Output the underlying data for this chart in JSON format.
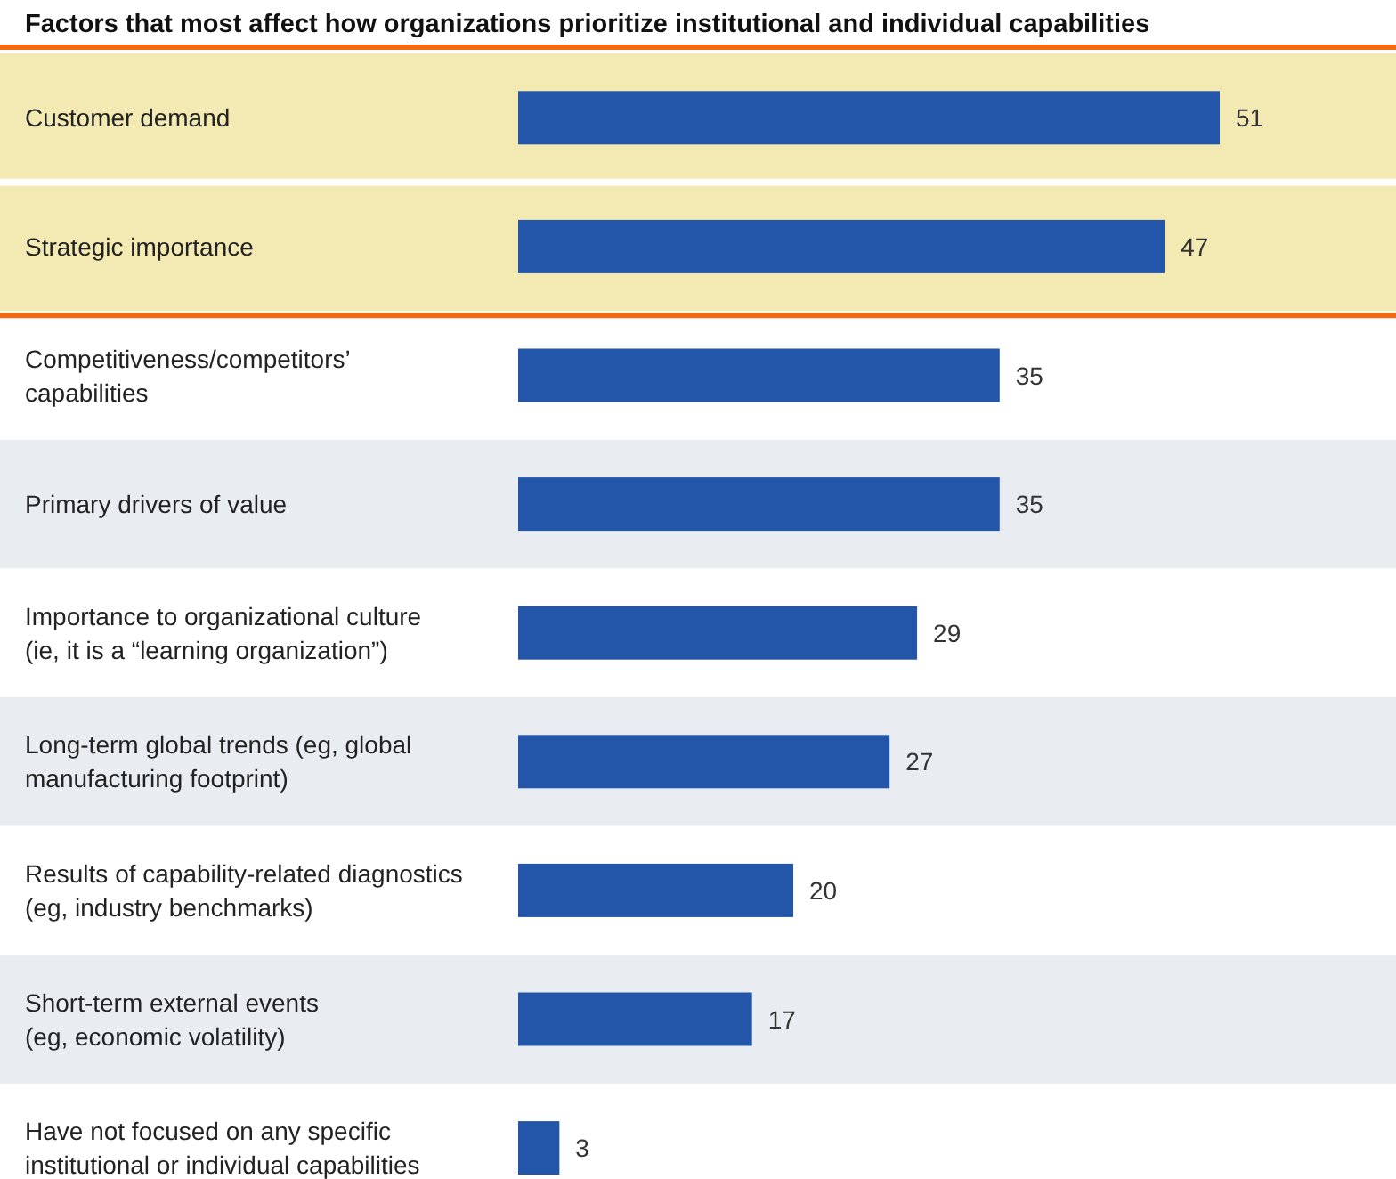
{
  "chart_data": {
    "type": "bar",
    "orientation": "horizontal",
    "title": "Factors that most affect how organizations prioritize institutional and individual capabilities",
    "categories": [
      "Customer demand",
      "Strategic importance",
      "Competitiveness/competitors’\ncapabilities",
      "Primary drivers of value",
      "Importance to organizational culture\n(ie, it is a “learning organization”)",
      "Long-term global trends (eg, global\nmanufacturing footprint)",
      "Results of capability-related diagnostics\n(eg, industry benchmarks)",
      "Short-term external events\n(eg, economic volatility)",
      "Have not focused on any specific\ninstitutional or individual capabilities"
    ],
    "values": [
      51,
      47,
      35,
      35,
      29,
      27,
      20,
      17,
      3
    ],
    "color": "#2356a8",
    "data_labels": true,
    "bands": [
      {
        "axis": "y",
        "from": "Customer demand",
        "to": "Strategic importance",
        "color": "#f3e9b3"
      }
    ]
  }
}
